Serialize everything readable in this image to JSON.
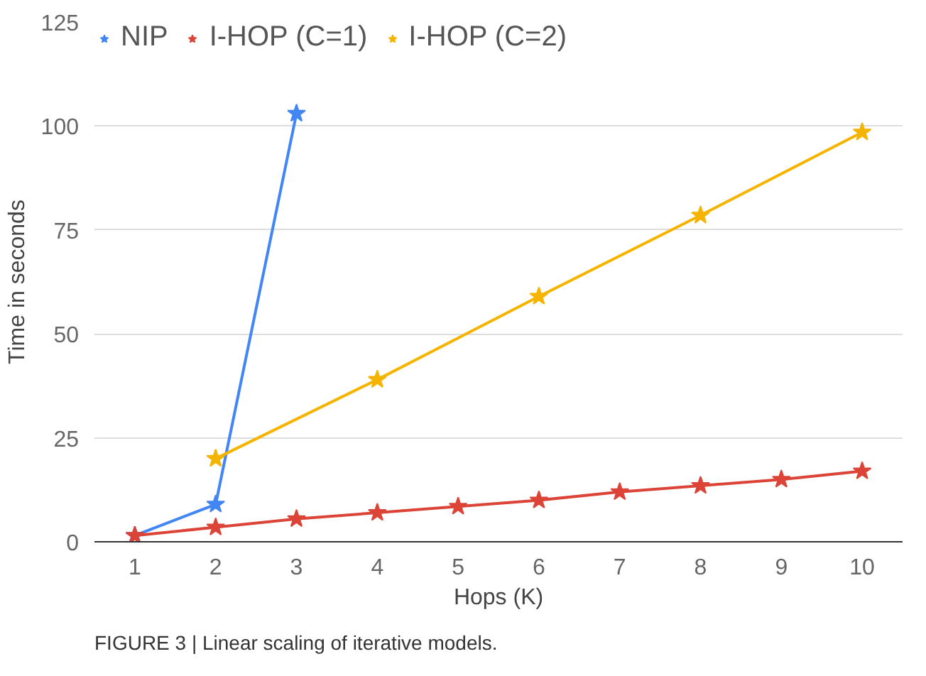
{
  "chart_data": {
    "type": "line",
    "xlabel": "Hops (K)",
    "ylabel": "Time in seconds",
    "categories": [
      "1",
      "2",
      "3",
      "4",
      "5",
      "6",
      "7",
      "8",
      "9",
      "10"
    ],
    "series": [
      {
        "name": "NIP",
        "color": "#4285f4",
        "values": [
          1.5,
          9,
          103,
          null,
          null,
          null,
          null,
          null,
          null,
          null
        ]
      },
      {
        "name": "I-HOP (C=1)",
        "color": "#db4437",
        "values": [
          1.5,
          3.5,
          5.5,
          7,
          8.5,
          10,
          12,
          13.5,
          15,
          17
        ]
      },
      {
        "name": "I-HOP (C=2)",
        "color": "#f4b400",
        "values": [
          null,
          20,
          null,
          39,
          null,
          59,
          null,
          78.5,
          null,
          98.5
        ]
      }
    ],
    "ylim": [
      0,
      125
    ],
    "yticks": [
      0,
      25,
      50,
      75,
      100,
      125
    ],
    "grid": "y",
    "legend": "top",
    "marker": "star",
    "annotations": [
      "FIGURE 3 | Linear scaling of iterative models."
    ]
  }
}
